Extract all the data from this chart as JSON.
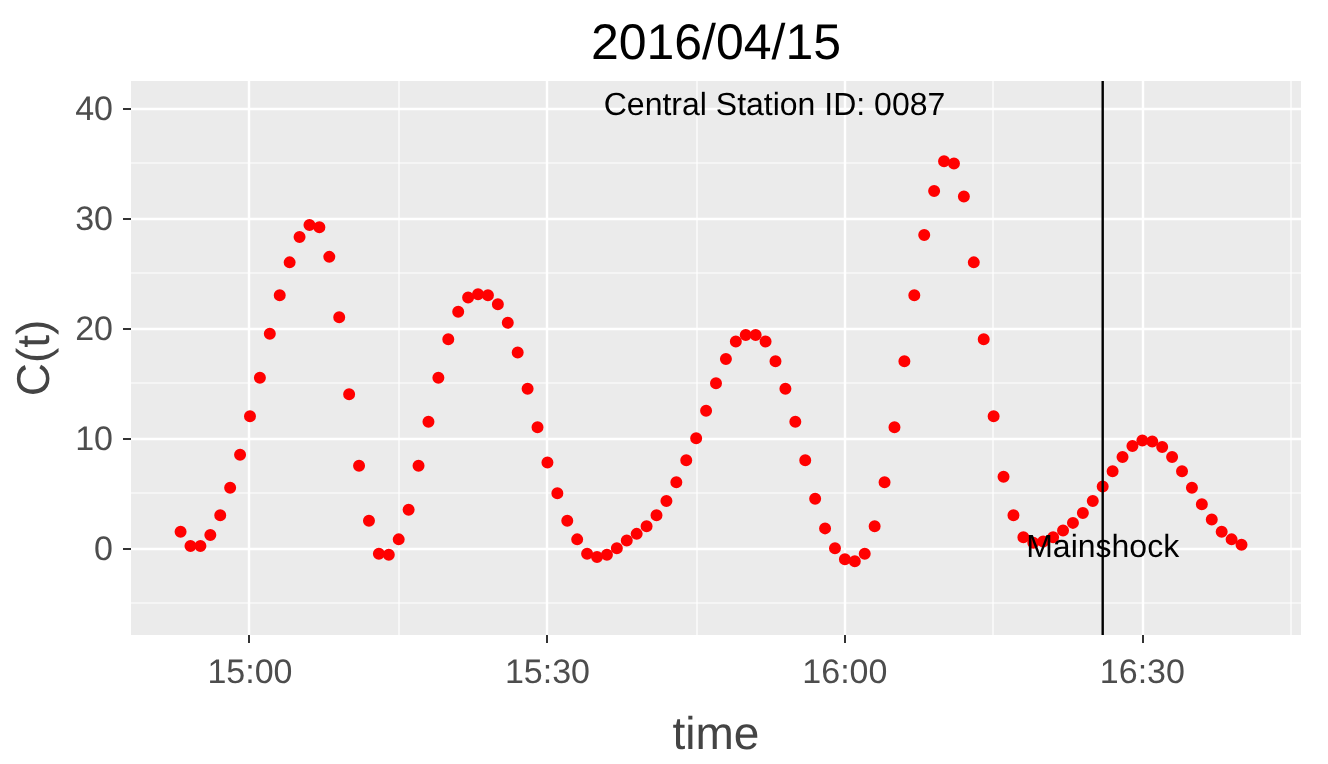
{
  "chart_data": {
    "type": "scatter",
    "title": "2016/04/15",
    "xlabel": "time",
    "ylabel": "C(t)",
    "annotations": [
      "Central Station ID: 0087"
    ],
    "x": [
      "2016-04-15T14:53",
      "2016-04-15T14:54",
      "2016-04-15T14:55",
      "2016-04-15T14:56",
      "2016-04-15T14:57",
      "2016-04-15T14:58",
      "2016-04-15T14:59",
      "2016-04-15T15:00",
      "2016-04-15T15:01",
      "2016-04-15T15:02",
      "2016-04-15T15:03",
      "2016-04-15T15:04",
      "2016-04-15T15:05",
      "2016-04-15T15:06",
      "2016-04-15T15:07",
      "2016-04-15T15:08",
      "2016-04-15T15:09",
      "2016-04-15T15:10",
      "2016-04-15T15:11",
      "2016-04-15T15:12",
      "2016-04-15T15:13",
      "2016-04-15T15:14",
      "2016-04-15T15:15",
      "2016-04-15T15:16",
      "2016-04-15T15:17",
      "2016-04-15T15:18",
      "2016-04-15T15:19",
      "2016-04-15T15:20",
      "2016-04-15T15:21",
      "2016-04-15T15:22",
      "2016-04-15T15:23",
      "2016-04-15T15:24",
      "2016-04-15T15:25",
      "2016-04-15T15:26",
      "2016-04-15T15:27",
      "2016-04-15T15:28",
      "2016-04-15T15:29",
      "2016-04-15T15:30",
      "2016-04-15T15:31",
      "2016-04-15T15:32",
      "2016-04-15T15:33",
      "2016-04-15T15:34",
      "2016-04-15T15:35",
      "2016-04-15T15:36",
      "2016-04-15T15:37",
      "2016-04-15T15:38",
      "2016-04-15T15:39",
      "2016-04-15T15:40",
      "2016-04-15T15:41",
      "2016-04-15T15:42",
      "2016-04-15T15:43",
      "2016-04-15T15:44",
      "2016-04-15T15:45",
      "2016-04-15T15:46",
      "2016-04-15T15:47",
      "2016-04-15T15:48",
      "2016-04-15T15:49",
      "2016-04-15T15:50",
      "2016-04-15T15:51",
      "2016-04-15T15:52",
      "2016-04-15T15:53",
      "2016-04-15T15:54",
      "2016-04-15T15:55",
      "2016-04-15T15:56",
      "2016-04-15T15:57",
      "2016-04-15T15:58",
      "2016-04-15T15:59",
      "2016-04-15T16:00",
      "2016-04-15T16:01",
      "2016-04-15T16:02",
      "2016-04-15T16:03",
      "2016-04-15T16:04",
      "2016-04-15T16:05",
      "2016-04-15T16:06",
      "2016-04-15T16:07",
      "2016-04-15T16:08",
      "2016-04-15T16:09",
      "2016-04-15T16:10",
      "2016-04-15T16:11",
      "2016-04-15T16:12",
      "2016-04-15T16:13",
      "2016-04-15T16:14",
      "2016-04-15T16:15",
      "2016-04-15T16:16",
      "2016-04-15T16:17",
      "2016-04-15T16:18",
      "2016-04-15T16:19",
      "2016-04-15T16:20",
      "2016-04-15T16:21",
      "2016-04-15T16:22",
      "2016-04-15T16:23",
      "2016-04-15T16:24",
      "2016-04-15T16:25",
      "2016-04-15T16:26",
      "2016-04-15T16:27",
      "2016-04-15T16:28",
      "2016-04-15T16:29",
      "2016-04-15T16:30",
      "2016-04-15T16:31",
      "2016-04-15T16:32",
      "2016-04-15T16:33",
      "2016-04-15T16:34",
      "2016-04-15T16:35",
      "2016-04-15T16:36",
      "2016-04-15T16:37",
      "2016-04-15T16:38",
      "2016-04-15T16:39",
      "2016-04-15T16:40"
    ],
    "series": [
      {
        "color": "#ff0000",
        "values": [
          1.5,
          0.2,
          0.2,
          1.2,
          3,
          5.5,
          8.5,
          12,
          15.5,
          19.5,
          23,
          26,
          28.3,
          29.4,
          29.2,
          26.5,
          21,
          14,
          7.5,
          2.5,
          -0.5,
          -0.6,
          0.8,
          3.5,
          7.5,
          11.5,
          15.5,
          19,
          21.5,
          22.8,
          23.1,
          23,
          22.2,
          20.5,
          17.8,
          14.5,
          11,
          7.8,
          5,
          2.5,
          0.8,
          -0.5,
          -0.8,
          -0.6,
          0,
          0.7,
          1.3,
          2,
          3,
          4.3,
          6,
          8,
          10,
          12.5,
          15,
          17.2,
          18.8,
          19.4,
          19.4,
          18.8,
          17,
          14.5,
          11.5,
          8,
          4.5,
          1.8,
          0,
          -1,
          -1.2,
          -0.5,
          2,
          6,
          11,
          17,
          23,
          28.5,
          32.5,
          35.2,
          35,
          32,
          26,
          19,
          12,
          6.5,
          3,
          1,
          0.5,
          0.6,
          1,
          1.6,
          2.3,
          3.2,
          4.3,
          5.6,
          7,
          8.3,
          9.3,
          9.8,
          9.7,
          9.2,
          8.3,
          7,
          5.5,
          4,
          2.6,
          1.5,
          0.8,
          0.3
        ]
      }
    ],
    "xlim": [
      "2016-04-15T14:48",
      "2016-04-15T16:46"
    ],
    "xticks": [
      {
        "value": "2016-04-15T15:00",
        "label": "15:00"
      },
      {
        "value": "2016-04-15T15:30",
        "label": "15:30"
      },
      {
        "value": "2016-04-15T16:00",
        "label": "16:00"
      },
      {
        "value": "2016-04-15T16:30",
        "label": "16:30"
      }
    ],
    "ylim": [
      -7.9,
      42.5
    ],
    "yticks": [
      0,
      10,
      20,
      30,
      40
    ],
    "ref_lines": [
      {
        "axis": "x",
        "value": "2016-04-15T16:26",
        "label": "Mainshock",
        "color": "#000000"
      }
    ],
    "grid": true,
    "marker": "circle"
  }
}
